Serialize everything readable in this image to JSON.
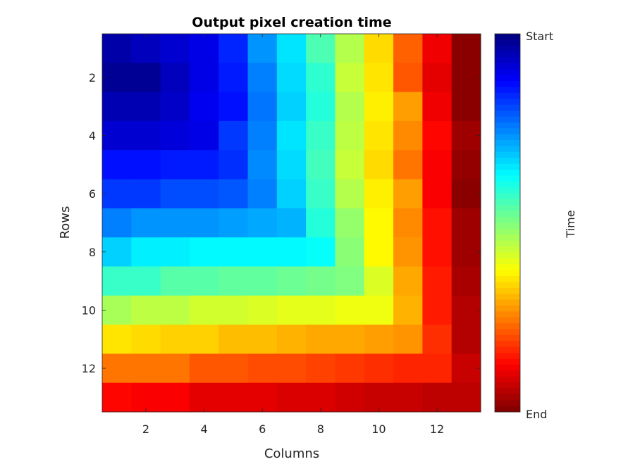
{
  "chart_data": {
    "type": "heatmap",
    "title": "Output pixel creation time",
    "xlabel": "Columns",
    "ylabel": "Rows",
    "x_ticks": [
      2,
      4,
      6,
      8,
      10,
      12
    ],
    "y_ticks": [
      2,
      4,
      6,
      8,
      10,
      12
    ],
    "xlim": [
      0.5,
      13.5
    ],
    "ylim": [
      0.5,
      13.5
    ],
    "y_direction": "top-to-bottom",
    "colormap": "jet",
    "colorbar": {
      "label": "Time",
      "top_label": "Start",
      "bottom_label": "End",
      "placement": "right"
    },
    "value_range": [
      0,
      1
    ],
    "values": [
      [
        0.04,
        0.06,
        0.08,
        0.1,
        0.16,
        0.27,
        0.35,
        0.45,
        0.55,
        0.66,
        0.78,
        0.89,
        0.99
      ],
      [
        0.02,
        0.02,
        0.06,
        0.1,
        0.15,
        0.25,
        0.34,
        0.42,
        0.57,
        0.65,
        0.79,
        0.9,
        0.99
      ],
      [
        0.05,
        0.05,
        0.07,
        0.11,
        0.14,
        0.24,
        0.33,
        0.41,
        0.55,
        0.64,
        0.72,
        0.89,
        0.99
      ],
      [
        0.08,
        0.08,
        0.09,
        0.1,
        0.18,
        0.25,
        0.35,
        0.43,
        0.56,
        0.65,
        0.74,
        0.87,
        0.97
      ],
      [
        0.14,
        0.14,
        0.15,
        0.15,
        0.17,
        0.26,
        0.34,
        0.44,
        0.57,
        0.66,
        0.76,
        0.88,
        0.98
      ],
      [
        0.18,
        0.18,
        0.2,
        0.2,
        0.21,
        0.25,
        0.33,
        0.43,
        0.55,
        0.64,
        0.72,
        0.88,
        0.99
      ],
      [
        0.25,
        0.27,
        0.27,
        0.27,
        0.28,
        0.29,
        0.3,
        0.41,
        0.52,
        0.63,
        0.74,
        0.86,
        0.97
      ],
      [
        0.33,
        0.36,
        0.36,
        0.37,
        0.37,
        0.37,
        0.37,
        0.38,
        0.51,
        0.63,
        0.73,
        0.86,
        0.97
      ],
      [
        0.43,
        0.43,
        0.46,
        0.46,
        0.47,
        0.47,
        0.48,
        0.49,
        0.5,
        0.59,
        0.71,
        0.85,
        0.96
      ],
      [
        0.54,
        0.56,
        0.56,
        0.58,
        0.58,
        0.59,
        0.6,
        0.6,
        0.61,
        0.61,
        0.7,
        0.85,
        0.95
      ],
      [
        0.65,
        0.66,
        0.67,
        0.67,
        0.69,
        0.69,
        0.7,
        0.71,
        0.71,
        0.72,
        0.73,
        0.83,
        0.95
      ],
      [
        0.76,
        0.76,
        0.76,
        0.79,
        0.79,
        0.8,
        0.8,
        0.81,
        0.82,
        0.83,
        0.84,
        0.84,
        0.93
      ],
      [
        0.87,
        0.88,
        0.88,
        0.9,
        0.9,
        0.9,
        0.91,
        0.91,
        0.92,
        0.93,
        0.93,
        0.94,
        0.94
      ]
    ]
  }
}
